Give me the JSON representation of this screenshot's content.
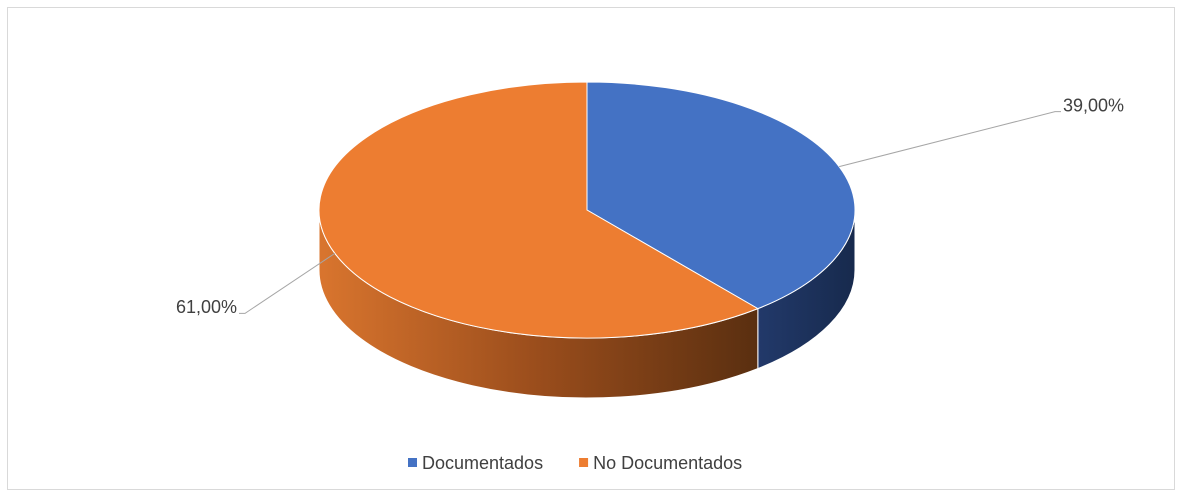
{
  "chart_data": {
    "type": "pie",
    "categories": [
      "Documentados",
      "No Documentados"
    ],
    "values": [
      39,
      61
    ],
    "value_labels": [
      "39,00%",
      "61,00%"
    ],
    "colors": [
      "#4472c4",
      "#ed7d31"
    ],
    "legend": "bottom"
  }
}
